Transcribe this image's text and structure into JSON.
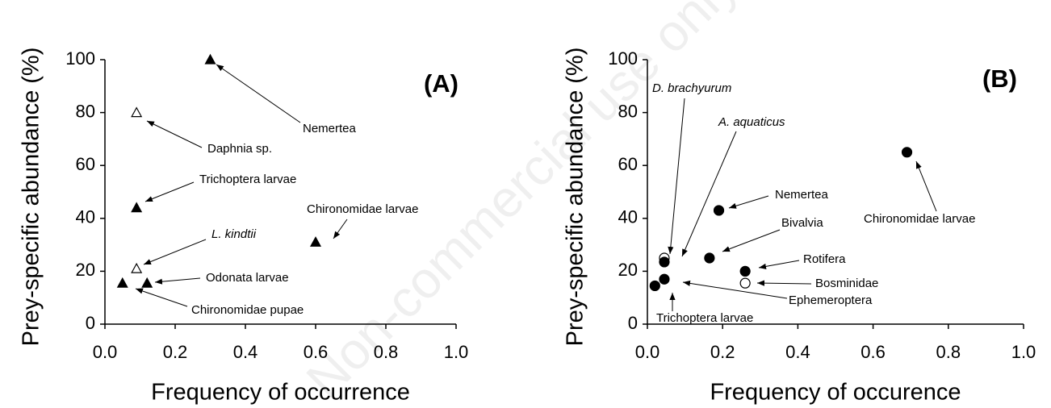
{
  "watermark": "Non-commercial use only",
  "chart_data": [
    {
      "type": "scatter",
      "panel": "(A)",
      "marker": "triangle",
      "xlabel": "Frequency of occurrence",
      "ylabel": "Prey-specific abundance (%)",
      "xlim": [
        0,
        1
      ],
      "ylim": [
        0,
        100
      ],
      "xticks": [
        {
          "value": 0,
          "label": "0.0"
        },
        {
          "value": 0.2,
          "label": "0.2"
        },
        {
          "value": 0.4,
          "label": "0.4"
        },
        {
          "value": 0.6,
          "label": "0.6"
        },
        {
          "value": 0.8,
          "label": "0.8"
        },
        {
          "value": 1,
          "label": "1.0"
        }
      ],
      "yticks": [
        0,
        20,
        40,
        60,
        80,
        100
      ],
      "points": [
        {
          "label": "Nemertea",
          "x": 0.3,
          "y": 100,
          "filled": true,
          "italic": false
        },
        {
          "label": "Daphnia sp.",
          "x": 0.09,
          "y": 80,
          "filled": false,
          "italic": false
        },
        {
          "label": "Trichoptera larvae",
          "x": 0.09,
          "y": 44,
          "filled": true,
          "italic": false
        },
        {
          "label": "L. kindtii",
          "x": 0.09,
          "y": 21,
          "filled": false,
          "italic": true
        },
        {
          "label": "Odonata larvae",
          "x": 0.12,
          "y": 15.5,
          "filled": true,
          "italic": false
        },
        {
          "label": "Chironomidae pupae",
          "x": 0.05,
          "y": 15.5,
          "filled": true,
          "italic": false
        },
        {
          "label": "Chironomidae larvae",
          "x": 0.6,
          "y": 31,
          "filled": true,
          "italic": false
        }
      ]
    },
    {
      "type": "scatter",
      "panel": "(B)",
      "marker": "circle",
      "xlabel": "Frequency of occurence",
      "ylabel": "Prey-specific abundance (%)",
      "xlim": [
        0,
        1
      ],
      "ylim": [
        0,
        100
      ],
      "xticks": [
        {
          "value": 0,
          "label": "0.0"
        },
        {
          "value": 0.2,
          "label": "0.2"
        },
        {
          "value": 0.4,
          "label": "0.4"
        },
        {
          "value": 0.6,
          "label": "0.6"
        },
        {
          "value": 0.8,
          "label": "0.8"
        },
        {
          "value": 1,
          "label": "1.0"
        }
      ],
      "yticks": [
        0,
        20,
        40,
        60,
        80,
        100
      ],
      "points": [
        {
          "label": "D. brachyurum",
          "x": 0.045,
          "y": 25,
          "filled": false,
          "italic": true
        },
        {
          "label": "A. aquaticus",
          "x": 0.045,
          "y": 23.5,
          "filled": true,
          "italic": true
        },
        {
          "label": "Nemertea",
          "x": 0.19,
          "y": 43,
          "filled": true,
          "italic": false
        },
        {
          "label": "Bivalvia",
          "x": 0.165,
          "y": 25,
          "filled": true,
          "italic": false
        },
        {
          "label": "Rotifera",
          "x": 0.26,
          "y": 20,
          "filled": true,
          "italic": false
        },
        {
          "label": "Bosminidae",
          "x": 0.26,
          "y": 15.5,
          "filled": false,
          "italic": false
        },
        {
          "label": "Ephemeroptera",
          "x": 0.045,
          "y": 17,
          "filled": true,
          "italic": false
        },
        {
          "label": "Trichoptera larvae",
          "x": 0.02,
          "y": 14.5,
          "filled": true,
          "italic": false
        },
        {
          "label": "Chironomidae larvae",
          "x": 0.69,
          "y": 65,
          "filled": true,
          "italic": false
        }
      ]
    }
  ]
}
